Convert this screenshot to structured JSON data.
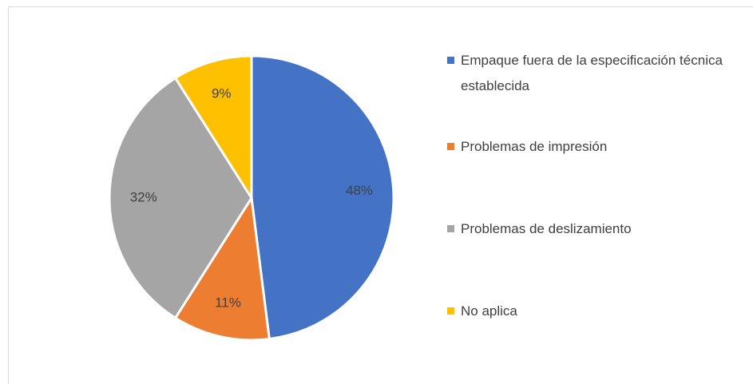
{
  "chart_data": {
    "type": "pie",
    "categories": [
      "Empaque fuera de la especificación técnica establecida",
      "Problemas de impresión",
      "Problemas de deslizamiento",
      "No aplica"
    ],
    "values": [
      48,
      11,
      32,
      9
    ],
    "value_labels": [
      "48%",
      "11%",
      "32%",
      "9%"
    ],
    "colors": [
      "#4472c4",
      "#ed7d31",
      "#a5a5a5",
      "#ffc000"
    ],
    "legend": "right"
  }
}
